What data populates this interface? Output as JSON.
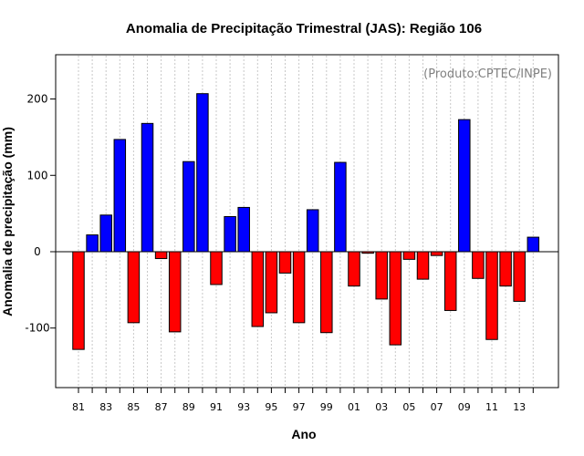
{
  "chart_data": {
    "type": "bar",
    "title": "Anomalia de Precipitação Trimestral (JAS): Região 106",
    "xlabel": "Ano",
    "ylabel": "Anomalia de precipitação (mm)",
    "annotation": "(Produto:CPTEC/INPE)",
    "ylim": [
      -178,
      258
    ],
    "yticks": [
      -100,
      0,
      100,
      200
    ],
    "grid": true,
    "positive_color": "#0000FF",
    "negative_color": "#FF0000",
    "years": [
      "81",
      "82",
      "83",
      "84",
      "85",
      "86",
      "87",
      "88",
      "89",
      "90",
      "91",
      "92",
      "93",
      "94",
      "95",
      "96",
      "97",
      "98",
      "99",
      "00",
      "01",
      "02",
      "03",
      "04",
      "05",
      "06",
      "07",
      "08",
      "09",
      "10",
      "11",
      "12",
      "13",
      "14"
    ],
    "values": [
      -128,
      22,
      48,
      147,
      -93,
      168,
      -9,
      -105,
      118,
      207,
      -43,
      46,
      58,
      -98,
      -80,
      -28,
      -93,
      55,
      -106,
      117,
      -45,
      -2,
      -62,
      -122,
      -10,
      -36,
      -5,
      -77,
      173,
      -35,
      -115,
      -45,
      -65,
      19
    ],
    "xtick_labels": [
      "81",
      "83",
      "85",
      "87",
      "89",
      "91",
      "93",
      "95",
      "97",
      "99",
      "01",
      "03",
      "05",
      "07",
      "09",
      "11",
      "13"
    ]
  }
}
